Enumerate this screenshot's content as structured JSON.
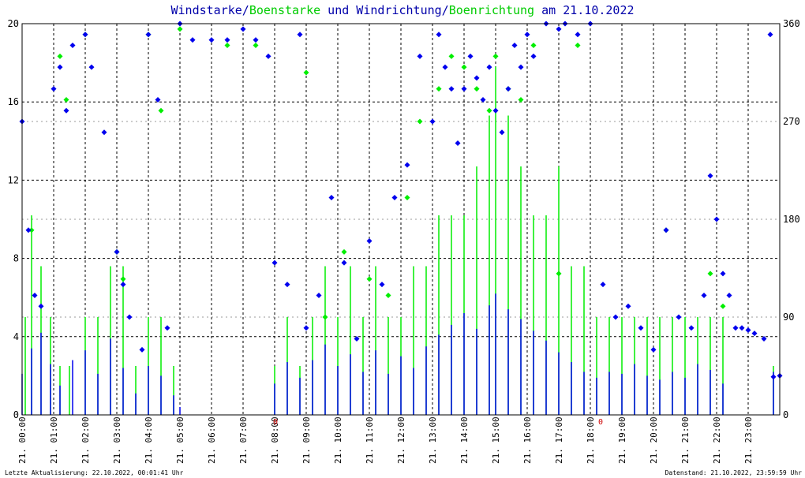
{
  "title": {
    "part1": "Windstarke/",
    "part2": "Boenstarke",
    "part3": " und Windrichtung/",
    "part4": "Boenrichtung",
    "part5": " am 21.10.2022"
  },
  "footer": {
    "left": "Letzte Aktualisierung: 22.10.2022, 00:01:41 Uhr",
    "right": "Datenstand: 21.10.2022, 23:59:59 Uhr"
  },
  "colors": {
    "wind": "#0000ee",
    "gust": "#00ee00",
    "grid": "#000000",
    "marker": "#cc0000"
  },
  "chart_data": {
    "type": "scatter",
    "x_ticks": [
      "21. 00:00",
      "21. 01:00",
      "21. 02:00",
      "21. 03:00",
      "21. 04:00",
      "21. 05:00",
      "21. 06:00",
      "21. 07:00",
      "21. 08:00",
      "21. 09:00",
      "21. 10:00",
      "21. 11:00",
      "21. 12:00",
      "21. 13:00",
      "21. 14:00",
      "21. 15:00",
      "21. 16:00",
      "21. 17:00",
      "21. 18:00",
      "21. 19:00",
      "21. 20:00",
      "21. 21:00",
      "21. 22:00",
      "21. 23:00"
    ],
    "y_left_ticks": [
      "0",
      "4",
      "8",
      "12",
      "16",
      "20"
    ],
    "y_right_ticks": [
      "0",
      "90",
      "180",
      "270",
      "360"
    ],
    "ylim_left": [
      0,
      20
    ],
    "ylim_right": [
      0,
      360
    ],
    "xlim_hours": [
      0,
      24
    ],
    "grid": true,
    "red_marks": [
      "0",
      "0"
    ],
    "series": [
      {
        "name": "Windstarke",
        "kind": "bars",
        "color": "#0000ee",
        "points": [
          [
            0.0,
            2.1
          ],
          [
            0.3,
            3.4
          ],
          [
            0.6,
            4.2
          ],
          [
            0.9,
            2.6
          ],
          [
            1.2,
            1.5
          ],
          [
            1.6,
            2.8
          ],
          [
            2.0,
            3.3
          ],
          [
            2.4,
            2.1
          ],
          [
            2.8,
            3.9
          ],
          [
            3.2,
            2.4
          ],
          [
            3.6,
            1.1
          ],
          [
            4.0,
            2.5
          ],
          [
            4.4,
            2.0
          ],
          [
            4.8,
            1.0
          ],
          [
            5.0,
            0.4
          ],
          [
            8.0,
            1.6
          ],
          [
            8.4,
            2.7
          ],
          [
            8.8,
            1.9
          ],
          [
            9.2,
            2.8
          ],
          [
            9.6,
            3.6
          ],
          [
            10.0,
            2.5
          ],
          [
            10.4,
            3.1
          ],
          [
            10.8,
            2.2
          ],
          [
            11.2,
            3.3
          ],
          [
            11.6,
            2.1
          ],
          [
            12.0,
            3.0
          ],
          [
            12.4,
            2.4
          ],
          [
            12.8,
            3.5
          ],
          [
            13.2,
            4.1
          ],
          [
            13.6,
            4.6
          ],
          [
            14.0,
            5.2
          ],
          [
            14.4,
            4.4
          ],
          [
            14.8,
            5.6
          ],
          [
            15.0,
            6.2
          ],
          [
            15.4,
            5.4
          ],
          [
            15.8,
            4.9
          ],
          [
            16.2,
            4.3
          ],
          [
            16.6,
            3.8
          ],
          [
            17.0,
            3.2
          ],
          [
            17.4,
            2.7
          ],
          [
            17.8,
            2.2
          ],
          [
            18.2,
            1.9
          ],
          [
            18.6,
            2.2
          ],
          [
            19.0,
            2.1
          ],
          [
            19.4,
            2.6
          ],
          [
            19.8,
            2.0
          ],
          [
            20.2,
            1.8
          ],
          [
            20.6,
            2.2
          ],
          [
            21.0,
            1.9
          ],
          [
            21.4,
            2.6
          ],
          [
            21.8,
            2.3
          ],
          [
            22.2,
            1.6
          ],
          [
            23.8,
            2.2
          ]
        ]
      },
      {
        "name": "Boenstarke",
        "kind": "bars",
        "color": "#00ee00",
        "points": [
          [
            0.1,
            5.0
          ],
          [
            0.3,
            10.2
          ],
          [
            0.6,
            7.6
          ],
          [
            0.9,
            5.0
          ],
          [
            1.2,
            2.5
          ],
          [
            1.5,
            2.5
          ],
          [
            2.0,
            5.0
          ],
          [
            2.4,
            5.0
          ],
          [
            2.8,
            7.6
          ],
          [
            3.2,
            7.6
          ],
          [
            3.6,
            2.5
          ],
          [
            4.0,
            5.0
          ],
          [
            4.4,
            5.0
          ],
          [
            4.8,
            2.5
          ],
          [
            8.0,
            2.5
          ],
          [
            8.4,
            5.0
          ],
          [
            8.8,
            2.5
          ],
          [
            9.2,
            5.0
          ],
          [
            9.6,
            7.6
          ],
          [
            10.0,
            5.0
          ],
          [
            10.4,
            7.6
          ],
          [
            10.8,
            5.0
          ],
          [
            11.2,
            7.6
          ],
          [
            11.6,
            5.0
          ],
          [
            12.0,
            5.0
          ],
          [
            12.4,
            7.6
          ],
          [
            12.8,
            7.6
          ],
          [
            13.2,
            10.2
          ],
          [
            13.6,
            10.2
          ],
          [
            14.0,
            10.2
          ],
          [
            14.4,
            12.7
          ],
          [
            14.8,
            15.3
          ],
          [
            15.0,
            17.8
          ],
          [
            15.4,
            15.3
          ],
          [
            15.8,
            12.7
          ],
          [
            16.2,
            10.2
          ],
          [
            16.6,
            10.2
          ],
          [
            17.0,
            12.7
          ],
          [
            17.4,
            7.6
          ],
          [
            17.8,
            7.6
          ],
          [
            18.2,
            5.0
          ],
          [
            18.6,
            5.0
          ],
          [
            19.0,
            5.0
          ],
          [
            19.4,
            5.0
          ],
          [
            19.8,
            5.0
          ],
          [
            20.2,
            5.0
          ],
          [
            20.6,
            5.0
          ],
          [
            21.0,
            5.0
          ],
          [
            21.4,
            5.0
          ],
          [
            21.8,
            5.0
          ],
          [
            22.2,
            5.0
          ],
          [
            23.8,
            2.5
          ]
        ]
      },
      {
        "name": "Windrichtung",
        "kind": "points",
        "color": "#0000ee",
        "points": [
          [
            0.0,
            270
          ],
          [
            0.2,
            170
          ],
          [
            0.4,
            110
          ],
          [
            0.6,
            100
          ],
          [
            1.0,
            300
          ],
          [
            1.2,
            320
          ],
          [
            1.4,
            280
          ],
          [
            1.6,
            340
          ],
          [
            2.0,
            350
          ],
          [
            2.2,
            320
          ],
          [
            2.6,
            260
          ],
          [
            3.0,
            150
          ],
          [
            3.2,
            120
          ],
          [
            3.4,
            90
          ],
          [
            3.8,
            60
          ],
          [
            4.0,
            350
          ],
          [
            4.3,
            290
          ],
          [
            4.6,
            80
          ],
          [
            5.0,
            360
          ],
          [
            5.4,
            345
          ],
          [
            6.0,
            345
          ],
          [
            6.5,
            345
          ],
          [
            7.0,
            355
          ],
          [
            7.4,
            345
          ],
          [
            7.8,
            330
          ],
          [
            8.0,
            140
          ],
          [
            8.4,
            120
          ],
          [
            8.8,
            350
          ],
          [
            9.0,
            80
          ],
          [
            9.4,
            110
          ],
          [
            9.8,
            200
          ],
          [
            10.2,
            140
          ],
          [
            10.6,
            70
          ],
          [
            11.0,
            160
          ],
          [
            11.4,
            120
          ],
          [
            11.8,
            200
          ],
          [
            12.2,
            230
          ],
          [
            12.6,
            330
          ],
          [
            13.0,
            270
          ],
          [
            13.2,
            350
          ],
          [
            13.4,
            320
          ],
          [
            13.6,
            300
          ],
          [
            13.8,
            250
          ],
          [
            14.0,
            300
          ],
          [
            14.2,
            330
          ],
          [
            14.4,
            310
          ],
          [
            14.6,
            290
          ],
          [
            14.8,
            320
          ],
          [
            15.0,
            280
          ],
          [
            15.2,
            260
          ],
          [
            15.4,
            300
          ],
          [
            15.6,
            340
          ],
          [
            15.8,
            320
          ],
          [
            16.0,
            350
          ],
          [
            16.2,
            330
          ],
          [
            16.6,
            360
          ],
          [
            17.0,
            355
          ],
          [
            17.2,
            360
          ],
          [
            17.6,
            350
          ],
          [
            18.0,
            360
          ],
          [
            18.4,
            120
          ],
          [
            18.8,
            90
          ],
          [
            19.2,
            100
          ],
          [
            19.6,
            80
          ],
          [
            20.0,
            60
          ],
          [
            20.4,
            170
          ],
          [
            20.8,
            90
          ],
          [
            21.2,
            80
          ],
          [
            21.6,
            110
          ],
          [
            21.8,
            220
          ],
          [
            22.0,
            180
          ],
          [
            22.2,
            130
          ],
          [
            22.4,
            110
          ],
          [
            22.6,
            80
          ],
          [
            22.8,
            80
          ],
          [
            23.0,
            78
          ],
          [
            23.2,
            75
          ],
          [
            23.5,
            70
          ],
          [
            23.7,
            350
          ],
          [
            23.8,
            35
          ],
          [
            24.0,
            36
          ]
        ]
      },
      {
        "name": "Boenrichtung",
        "kind": "points",
        "color": "#00ee00",
        "points": [
          [
            0.3,
            170
          ],
          [
            1.2,
            330
          ],
          [
            1.4,
            290
          ],
          [
            2.0,
            350
          ],
          [
            3.0,
            150
          ],
          [
            3.2,
            125
          ],
          [
            4.0,
            350
          ],
          [
            4.4,
            280
          ],
          [
            5.0,
            355
          ],
          [
            6.5,
            340
          ],
          [
            7.4,
            340
          ],
          [
            9.0,
            315
          ],
          [
            9.6,
            90
          ],
          [
            10.2,
            150
          ],
          [
            11.0,
            125
          ],
          [
            11.6,
            110
          ],
          [
            12.2,
            200
          ],
          [
            12.6,
            270
          ],
          [
            13.2,
            300
          ],
          [
            13.6,
            330
          ],
          [
            14.0,
            320
          ],
          [
            14.4,
            300
          ],
          [
            14.8,
            280
          ],
          [
            15.0,
            330
          ],
          [
            15.4,
            300
          ],
          [
            15.8,
            290
          ],
          [
            16.2,
            340
          ],
          [
            17.0,
            130
          ],
          [
            17.6,
            340
          ],
          [
            20.4,
            170
          ],
          [
            21.8,
            130
          ],
          [
            22.2,
            100
          ]
        ]
      }
    ]
  }
}
